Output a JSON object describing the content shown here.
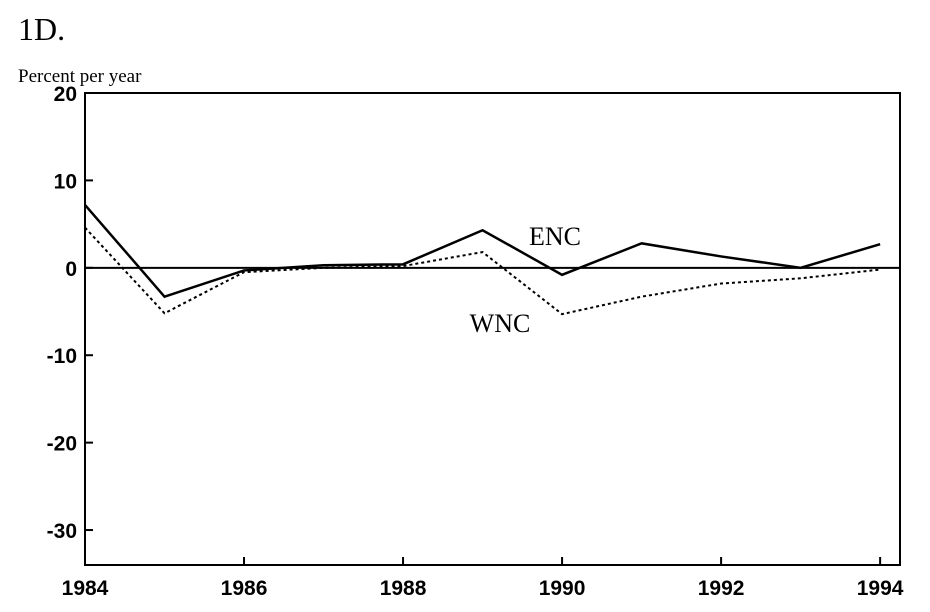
{
  "chart_data": {
    "type": "line",
    "title": "1D.",
    "y_label": "Percent per year",
    "x": [
      1984,
      1985,
      1986,
      1987,
      1988,
      1989,
      1990,
      1991,
      1992,
      1993,
      1994
    ],
    "series": [
      {
        "name": "ENC",
        "color": "#000000",
        "dash": "solid",
        "values": [
          7.2,
          -3.3,
          -0.3,
          0.3,
          0.4,
          4.3,
          -0.8,
          2.8,
          1.3,
          0,
          2.7
        ]
      },
      {
        "name": "WNC",
        "color": "#000000",
        "dash": "dotted",
        "values": [
          4.6,
          -5.2,
          -0.5,
          0,
          0.2,
          1.8,
          -5.3,
          -3.3,
          -1.8,
          -1.2,
          -0.2
        ]
      }
    ],
    "xlim": [
      1984,
      1994.25
    ],
    "xticks": [
      1984,
      1986,
      1988,
      1990,
      1992,
      1994
    ],
    "ylim": [
      -34,
      20
    ],
    "yticks": [
      20,
      10,
      0,
      -10,
      -20,
      -30
    ]
  }
}
